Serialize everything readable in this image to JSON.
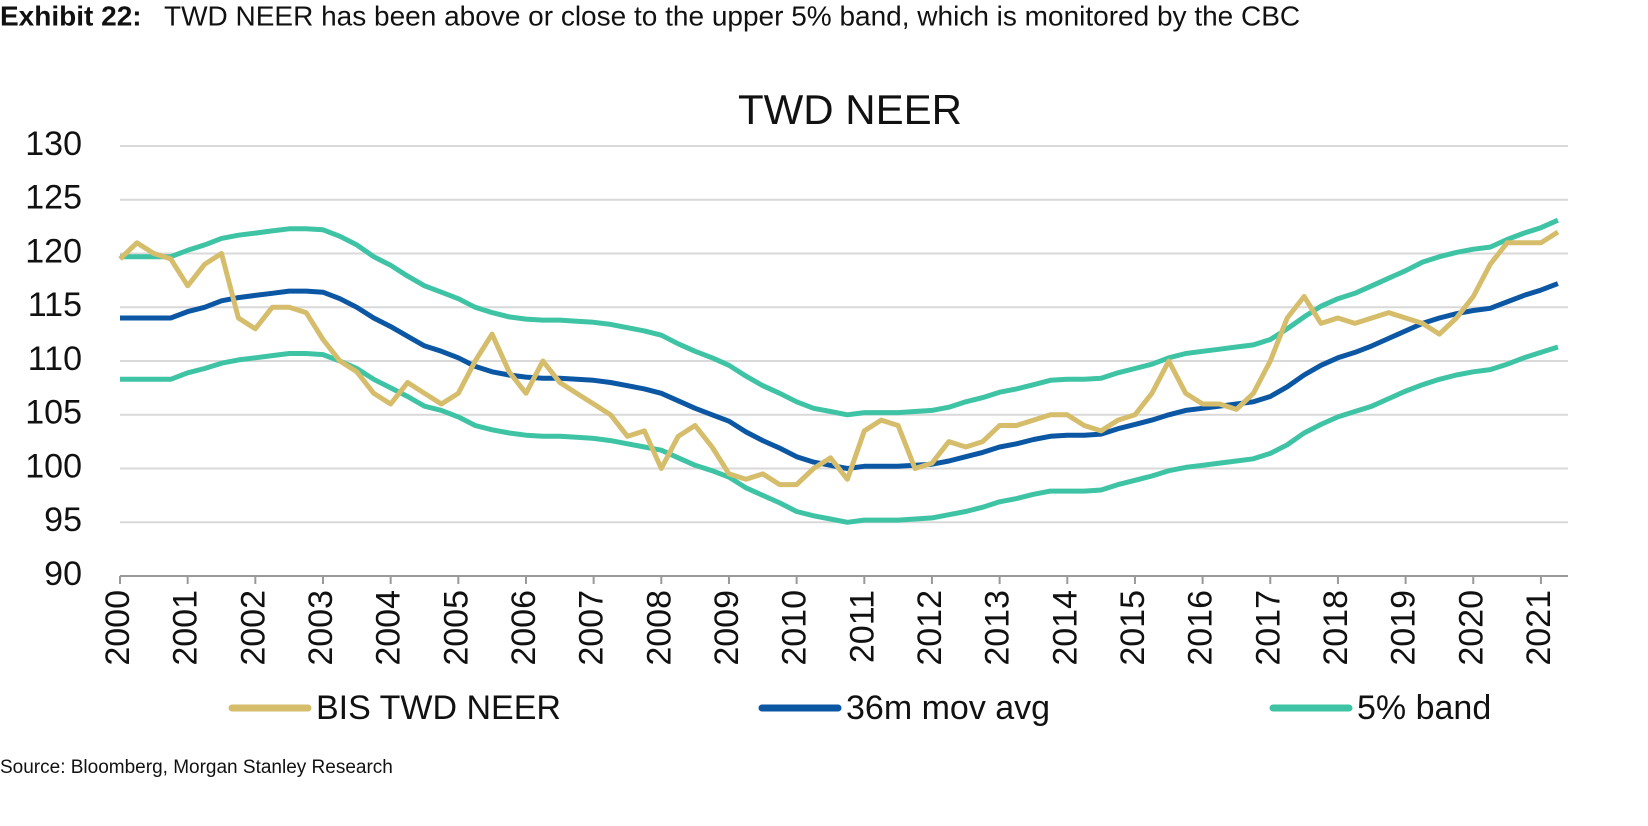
{
  "exhibit": "Exhibit 22:",
  "heading": "TWD NEER has been above or close to the upper 5% band, which is monitored by the CBC",
  "source": "Source: Bloomberg, Morgan Stanley Research",
  "chart_data": {
    "type": "line",
    "title": "TWD NEER",
    "x": [
      2000,
      2000.25,
      2000.5,
      2000.75,
      2001,
      2001.25,
      2001.5,
      2001.75,
      2002,
      2002.25,
      2002.5,
      2002.75,
      2003,
      2003.25,
      2003.5,
      2003.75,
      2004,
      2004.25,
      2004.5,
      2004.75,
      2005,
      2005.25,
      2005.5,
      2005.75,
      2006,
      2006.25,
      2006.5,
      2006.75,
      2007,
      2007.25,
      2007.5,
      2007.75,
      2008,
      2008.25,
      2008.5,
      2008.75,
      2009,
      2009.25,
      2009.5,
      2009.75,
      2010,
      2010.25,
      2010.5,
      2010.75,
      2011,
      2011.25,
      2011.5,
      2011.75,
      2012,
      2012.25,
      2012.5,
      2012.75,
      2013,
      2013.25,
      2013.5,
      2013.75,
      2014,
      2014.25,
      2014.5,
      2014.75,
      2015,
      2015.25,
      2015.5,
      2015.75,
      2016,
      2016.25,
      2016.5,
      2016.75,
      2017,
      2017.25,
      2017.5,
      2017.75,
      2018,
      2018.25,
      2018.5,
      2018.75,
      2019,
      2019.25,
      2019.5,
      2019.75,
      2020,
      2020.25,
      2020.5,
      2020.75,
      2021,
      2021.25
    ],
    "series": [
      {
        "name": "BIS TWD NEER",
        "color": "#d5bd6b",
        "values": [
          119.5,
          121,
          120,
          119.5,
          117,
          119,
          120,
          114,
          113,
          115,
          115,
          114.5,
          112,
          110,
          109,
          107,
          106,
          108,
          107,
          106,
          107,
          110,
          112.5,
          109,
          107,
          110,
          108,
          107,
          106,
          105,
          103,
          103.5,
          100,
          103,
          104,
          102,
          99.5,
          99,
          99.5,
          98.5,
          98.5,
          100,
          101,
          99,
          103.5,
          104.5,
          104,
          100,
          100.5,
          102.5,
          102,
          102.5,
          104,
          104,
          104.5,
          105,
          105,
          104,
          103.5,
          104.5,
          105,
          107,
          110,
          107,
          106,
          106,
          105.5,
          107,
          110,
          114,
          116,
          113.5,
          114,
          113.5,
          114,
          114.5,
          114,
          113.5,
          112.5,
          114,
          116,
          119,
          121,
          121,
          121,
          122
        ]
      },
      {
        "name": "36m mov avg",
        "color": "#0b57a4",
        "values": [
          114,
          114,
          114,
          114,
          114.6,
          115,
          115.6,
          115.9,
          116.1,
          116.3,
          116.5,
          116.5,
          116.4,
          115.8,
          115,
          114,
          113.2,
          112.3,
          111.4,
          110.9,
          110.3,
          109.5,
          109,
          108.7,
          108.5,
          108.4,
          108.4,
          108.3,
          108.2,
          108,
          107.7,
          107.4,
          107,
          106.3,
          105.6,
          105,
          104.4,
          103.4,
          102.6,
          101.9,
          101.1,
          100.6,
          100.3,
          100,
          100.2,
          100.2,
          100.2,
          100.3,
          100.4,
          100.7,
          101.1,
          101.5,
          102,
          102.3,
          102.7,
          103,
          103.1,
          103.1,
          103.2,
          103.7,
          104.1,
          104.5,
          105,
          105.4,
          105.6,
          105.8,
          106,
          106.2,
          106.7,
          107.6,
          108.7,
          109.6,
          110.3,
          110.8,
          111.4,
          112.1,
          112.8,
          113.5,
          114,
          114.4,
          114.7,
          114.9,
          115.5,
          116.1,
          116.6,
          117.2
        ]
      },
      {
        "name": "5% band",
        "color": "#3ec4a4",
        "values": [
          119.7,
          119.7,
          119.7,
          119.7,
          120.3,
          120.8,
          121.4,
          121.7,
          121.9,
          122.1,
          122.3,
          122.3,
          122.2,
          121.6,
          120.8,
          119.7,
          118.9,
          117.9,
          117,
          116.4,
          115.8,
          115,
          114.5,
          114.1,
          113.9,
          113.8,
          113.8,
          113.7,
          113.6,
          113.4,
          113.1,
          112.8,
          112.4,
          111.6,
          110.9,
          110.3,
          109.6,
          108.6,
          107.7,
          107,
          106.2,
          105.6,
          105.3,
          105,
          105.2,
          105.2,
          105.2,
          105.3,
          105.4,
          105.7,
          106.2,
          106.6,
          107.1,
          107.4,
          107.8,
          108.2,
          108.3,
          108.3,
          108.4,
          108.9,
          109.3,
          109.7,
          110.3,
          110.7,
          110.9,
          111.1,
          111.3,
          111.5,
          112,
          113,
          114.1,
          115.1,
          115.8,
          116.3,
          117,
          117.7,
          118.4,
          119.2,
          119.7,
          120.1,
          120.4,
          120.6,
          121.3,
          121.9,
          122.4,
          123.1
        ],
        "lower": [
          108.3,
          108.3,
          108.3,
          108.3,
          108.9,
          109.3,
          109.8,
          110.1,
          110.3,
          110.5,
          110.7,
          110.7,
          110.6,
          110,
          109.3,
          108.3,
          107.5,
          106.7,
          105.8,
          105.4,
          104.8,
          104,
          103.6,
          103.3,
          103.1,
          103,
          103,
          102.9,
          102.8,
          102.6,
          102.3,
          102,
          101.7,
          101,
          100.3,
          99.8,
          99.2,
          98.2,
          97.5,
          96.8,
          96,
          95.6,
          95.3,
          95,
          95.2,
          95.2,
          95.2,
          95.3,
          95.4,
          95.7,
          96,
          96.4,
          96.9,
          97.2,
          97.6,
          97.9,
          97.9,
          97.9,
          98,
          98.5,
          98.9,
          99.3,
          99.8,
          100.1,
          100.3,
          100.5,
          100.7,
          100.9,
          101.4,
          102.2,
          103.3,
          104.1,
          104.8,
          105.3,
          105.8,
          106.5,
          107.2,
          107.8,
          108.3,
          108.7,
          109,
          109.2,
          109.7,
          110.3,
          110.8,
          111.3
        ]
      }
    ],
    "xlim": [
      2000,
      2021.4
    ],
    "xticks": [
      2000,
      2001,
      2002,
      2003,
      2004,
      2005,
      2006,
      2007,
      2008,
      2009,
      2010,
      2011,
      2012,
      2013,
      2014,
      2015,
      2016,
      2017,
      2018,
      2019,
      2020,
      2021
    ],
    "ylim": [
      90,
      130
    ],
    "yticks": [
      90,
      95,
      100,
      105,
      110,
      115,
      120,
      125,
      130
    ],
    "grid": true,
    "legend": "bottom"
  }
}
